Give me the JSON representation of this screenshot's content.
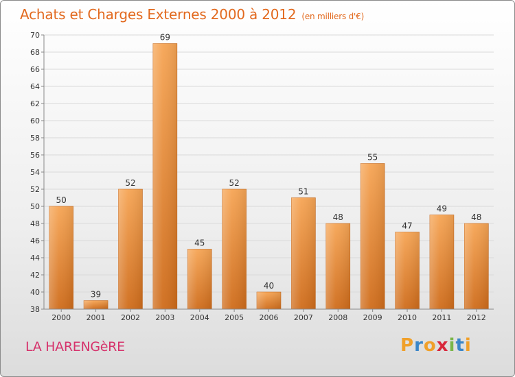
{
  "header": {
    "title": "Achats et Charges Externes 2000 à 2012",
    "subtitle": "(en milliers d'€)"
  },
  "footer": {
    "commune": "LA HARENGèRE",
    "logo_letters": [
      "P",
      "r",
      "o",
      "x",
      "i",
      "t",
      "i"
    ],
    "logo_colors": [
      "#f0a02a",
      "#3a86c8",
      "#f0a02a",
      "#d8283c",
      "#7ab648",
      "#3a86c8",
      "#f0a02a"
    ]
  },
  "chart_data": {
    "type": "bar",
    "title": "Achats et Charges Externes 2000 à 2012",
    "subtitle": "(en milliers d'€)",
    "categories": [
      "2000",
      "2001",
      "2002",
      "2003",
      "2004",
      "2005",
      "2006",
      "2007",
      "2008",
      "2009",
      "2010",
      "2011",
      "2012"
    ],
    "values": [
      50,
      39,
      52,
      69,
      45,
      52,
      40,
      51,
      48,
      55,
      47,
      49,
      48
    ],
    "ylim": [
      38,
      70
    ],
    "yticks": [
      38,
      40,
      42,
      44,
      46,
      48,
      50,
      52,
      54,
      56,
      58,
      60,
      62,
      64,
      66,
      68,
      70
    ],
    "grid": true,
    "colors": {
      "bar_top": "#f6a555",
      "bar_bottom": "#cf6c1b",
      "grid": "#d9d9d9",
      "axis_text": "#333333"
    }
  }
}
